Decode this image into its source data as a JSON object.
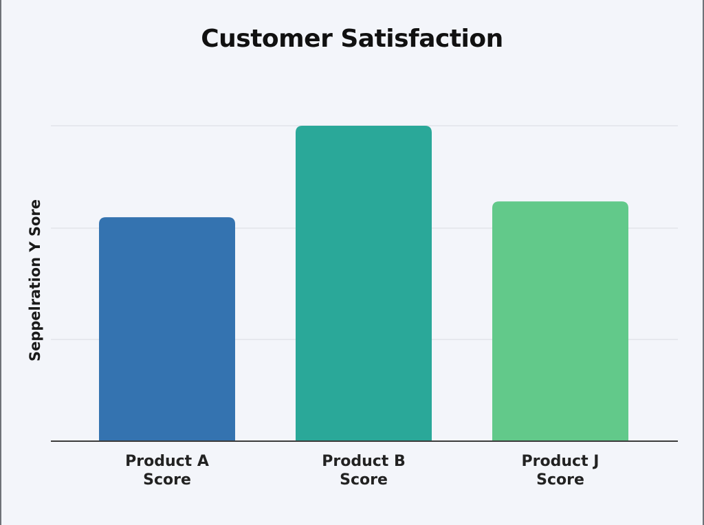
{
  "chart_data": {
    "type": "bar",
    "title": "Customer Satisfaction",
    "xlabel": "",
    "ylabel": "Seppelration Y Sore",
    "categories": [
      [
        "Product A",
        "Score"
      ],
      [
        "Product B",
        "Score"
      ],
      [
        "Product J",
        "Score"
      ]
    ],
    "values": [
      71,
      100,
      76
    ],
    "ylim": [
      0,
      100
    ],
    "grid": true,
    "legend": "none",
    "colors": [
      "#3473b0",
      "#2aa899",
      "#62c98a"
    ]
  }
}
